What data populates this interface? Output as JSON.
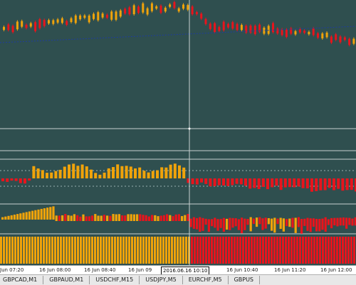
{
  "chart": {
    "colors": {
      "background": "#2f4f4f",
      "bull": "#f0a30a",
      "bear": "#e8141c",
      "separator": "#c8d0d0",
      "cursor": "#c8d0d0",
      "ma_line": "#1e3ca0"
    },
    "crosshair_time": "2016.06.16 10:10",
    "time_axis": [
      "Jun 07:20",
      "16 Jun 08:00",
      "16 Jun 08:40",
      "16 Jun 09",
      "16 Jun 10:40",
      "16 Jun 11:20",
      "16 Jun 12:00"
    ]
  },
  "tabs": [
    "GBPCAD,M1",
    "GBPAUD,M1",
    "USDCHF,M15",
    "USDJPY,M5",
    "EURCHF,M5",
    "GBPUS"
  ]
}
